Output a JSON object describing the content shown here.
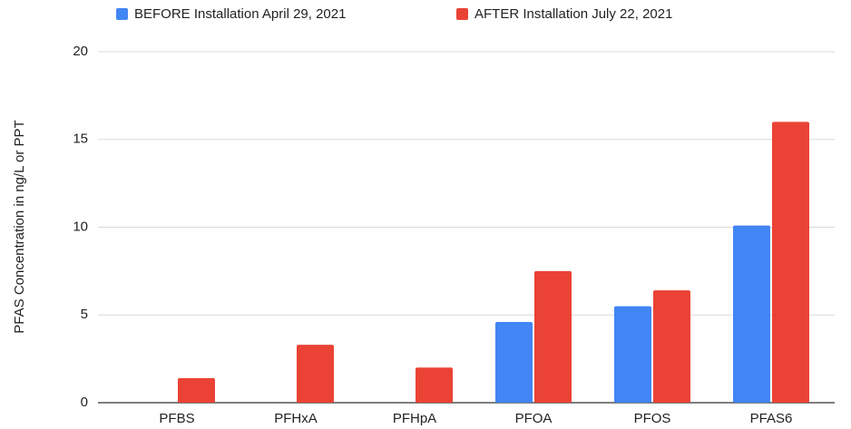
{
  "chart_data": {
    "type": "bar",
    "y_label": "PFAS Concentration in ng/L or PPT",
    "categories": [
      "PFBS",
      "PFHxA",
      "PFHpA",
      "PFOA",
      "PFOS",
      "PFAS6"
    ],
    "series": [
      {
        "name": "BEFORE Installation April 29, 2021",
        "color": "#4285f4",
        "values": [
          0,
          0,
          0,
          4.6,
          5.5,
          10.1
        ]
      },
      {
        "name": "AFTER Installation July 22, 2021",
        "color": "#ea4335",
        "values": [
          1.4,
          3.3,
          2.0,
          7.5,
          6.4,
          16
        ]
      }
    ],
    "ylim": [
      0,
      20
    ],
    "yticks": [
      0,
      5,
      10,
      15,
      20
    ],
    "grid": true,
    "legend": "top"
  }
}
